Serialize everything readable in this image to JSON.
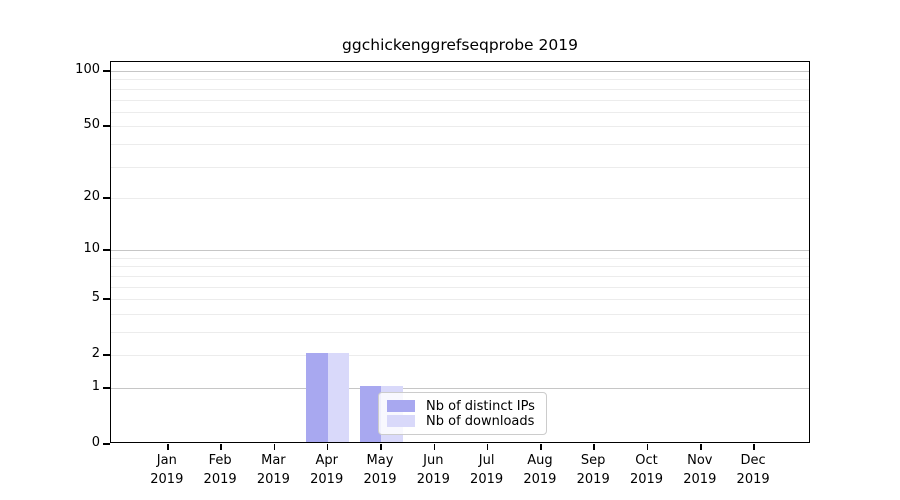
{
  "title": "ggchickenggrefseqprobe 2019",
  "chart_data": {
    "type": "bar",
    "title": "ggchickenggrefseqprobe 2019",
    "categories": [
      "Jan 2019",
      "Feb 2019",
      "Mar 2019",
      "Apr 2019",
      "May 2019",
      "Jun 2019",
      "Jul 2019",
      "Aug 2019",
      "Sep 2019",
      "Oct 2019",
      "Nov 2019",
      "Dec 2019"
    ],
    "x_tick_months": [
      "Jan",
      "Feb",
      "Mar",
      "Apr",
      "May",
      "Jun",
      "Jul",
      "Aug",
      "Sep",
      "Oct",
      "Nov",
      "Dec"
    ],
    "x_tick_year": "2019",
    "series": [
      {
        "name": "Nb of distinct IPs",
        "color": "#a8a8f0",
        "values": [
          0,
          0,
          0,
          2,
          1,
          0,
          0,
          0,
          0,
          0,
          0,
          0
        ]
      },
      {
        "name": "Nb of downloads",
        "color": "#d9d9fa",
        "values": [
          0,
          0,
          0,
          2,
          1,
          0,
          0,
          0,
          0,
          0,
          0,
          0
        ]
      }
    ],
    "xlabel": "",
    "ylabel": "",
    "y_scale": "log1p",
    "ylim": [
      0,
      112
    ],
    "y_ticks": [
      0,
      1,
      2,
      5,
      10,
      20,
      50,
      100
    ],
    "grid": "horizontal",
    "grid_minor_values": [
      2,
      3,
      4,
      5,
      6,
      7,
      8,
      9,
      20,
      30,
      40,
      50,
      60,
      70,
      80,
      90
    ],
    "grid_major_values": [
      1,
      10,
      100
    ],
    "legend_position": "lower center-left inside plot"
  },
  "legend": {
    "items": [
      {
        "label": "Nb of distinct IPs",
        "color": "#a8a8f0"
      },
      {
        "label": "Nb of downloads",
        "color": "#d9d9fa"
      }
    ]
  },
  "colors": {
    "grid_minor": "#ececec",
    "grid_major": "#c6c6c6",
    "axis": "#000000",
    "legend_border": "#cccccc"
  }
}
